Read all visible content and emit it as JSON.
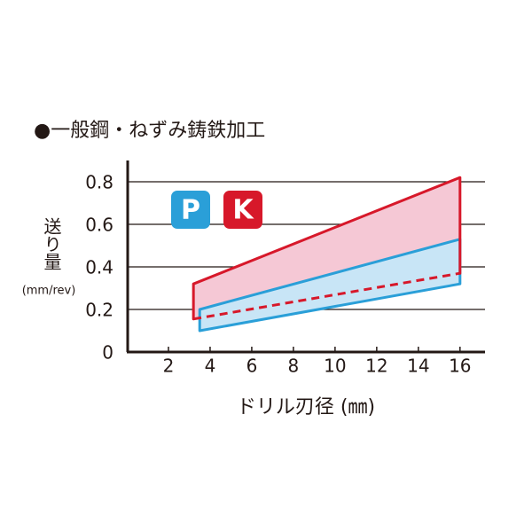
{
  "chart_data": {
    "type": "band",
    "title": "●一般鋼・ねずみ鋳鉄加工",
    "y_label": "送り量",
    "y_unit": "(mm/rev)",
    "x_label": "ドリル刃径 (㎜)",
    "xlim": [
      0,
      17.2
    ],
    "xticks": [
      2,
      4,
      6,
      8,
      10,
      12,
      14,
      16
    ],
    "ylim": [
      0,
      0.9
    ],
    "yticks": [
      0,
      0.2,
      0.4,
      0.6,
      0.8
    ],
    "grid": true,
    "series": [
      {
        "name": "K",
        "color": "#d7182a",
        "fill": "#f5c8d5",
        "x": [
          3.2,
          16
        ],
        "upper": [
          0.32,
          0.82
        ],
        "lower": [
          0.155,
          0.37
        ]
      },
      {
        "name": "P",
        "color": "#2a9fd8",
        "fill": "#c8e5f6",
        "x": [
          3.5,
          16
        ],
        "upper": [
          0.2,
          0.53
        ],
        "lower": [
          0.1,
          0.32
        ]
      }
    ]
  }
}
